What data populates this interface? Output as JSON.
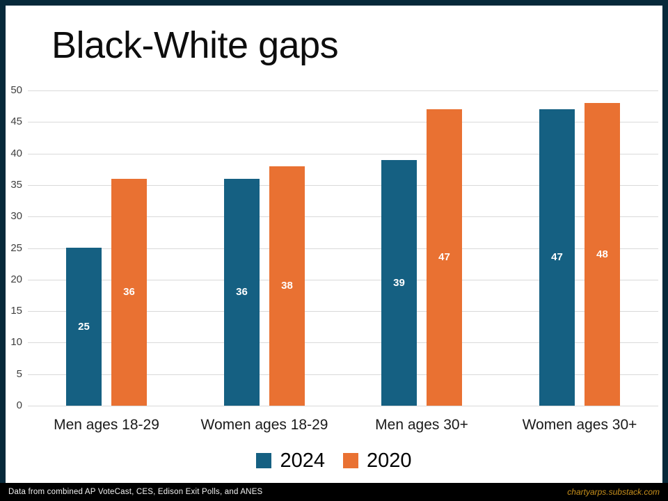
{
  "page": {
    "title": "Black-White gaps"
  },
  "colors": {
    "accent_blue": "#156082",
    "accent_orange": "#E97132",
    "frame_navy": "#07293a",
    "footer_black": "#000000",
    "gridline": "#d9d9d9",
    "tick_text": "#3f3f3f",
    "footer_link": "#c8901c"
  },
  "chart_data": {
    "type": "bar",
    "title": "Black-White gaps",
    "categories": [
      "Men ages 18-29",
      "Women ages 18-29",
      "Men ages 30+",
      "Women ages 30+"
    ],
    "series": [
      {
        "name": "2024",
        "color": "#156082",
        "values": [
          25,
          36,
          39,
          47
        ]
      },
      {
        "name": "2020",
        "color": "#E97132",
        "values": [
          36,
          38,
          47,
          48
        ]
      }
    ],
    "xlabel": "",
    "ylabel": "",
    "ylim": [
      0,
      50
    ],
    "yticks": [
      0,
      5,
      10,
      15,
      20,
      25,
      30,
      35,
      40,
      45,
      50
    ],
    "grid": true,
    "legend_position": "bottom",
    "value_labels": "inside-center-white"
  },
  "footer": {
    "source": "Data from combined AP VoteCast, CES, Edison Exit Polls, and ANES",
    "site": "chartyarps.substack.com"
  }
}
